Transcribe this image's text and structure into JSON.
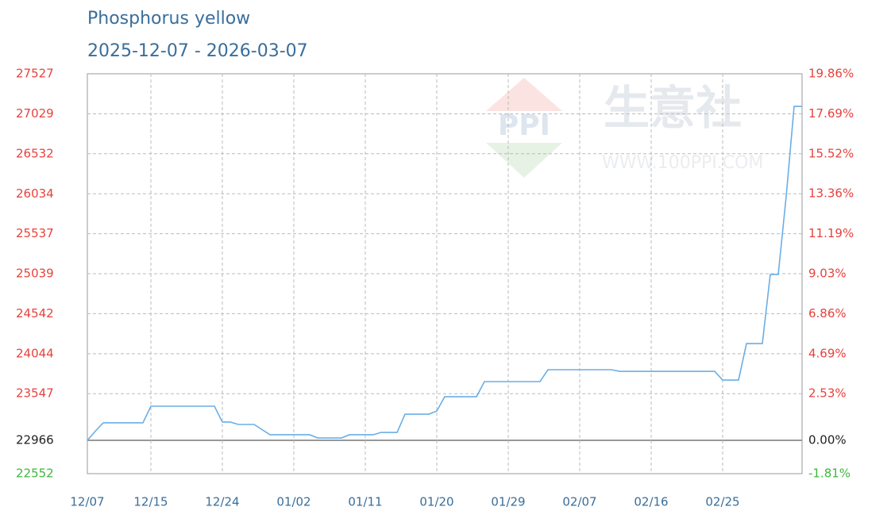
{
  "chart_data": {
    "type": "line",
    "title": "Phosphorus yellow",
    "subtitle": "2025-12-07 - 2026-03-07",
    "watermark": {
      "brand": "生意社",
      "site": "WWW.100PPI.COM"
    },
    "categories": [
      "12/07",
      null,
      null,
      null,
      null,
      null,
      null,
      null,
      "12/15",
      null,
      null,
      null,
      null,
      null,
      null,
      null,
      null,
      "12/24",
      null,
      null,
      null,
      null,
      null,
      null,
      null,
      null,
      "01/02",
      null,
      null,
      null,
      null,
      null,
      null,
      null,
      null,
      "01/11",
      null,
      null,
      null,
      null,
      null,
      null,
      null,
      null,
      "01/20",
      null,
      null,
      null,
      null,
      null,
      null,
      null,
      null,
      "01/29",
      null,
      null,
      null,
      null,
      null,
      null,
      null,
      null,
      "02/07",
      null,
      null,
      null,
      null,
      null,
      null,
      null,
      null,
      "02/16",
      null,
      null,
      null,
      null,
      null,
      null,
      null,
      null,
      "02/25",
      null,
      null,
      null,
      null,
      null,
      null,
      null,
      null,
      null,
      null
    ],
    "series": [
      {
        "name": "Phosphorus yellow",
        "color": "#6aaee6",
        "values": [
          22966,
          23080,
          23184,
          23184,
          23184,
          23184,
          23184,
          23184,
          23391,
          23391,
          23391,
          23391,
          23391,
          23391,
          23391,
          23391,
          23391,
          23194,
          23194,
          23164,
          23164,
          23164,
          23100,
          23036,
          23036,
          23036,
          23036,
          23036,
          23036,
          22996,
          22996,
          22996,
          22996,
          23036,
          23036,
          23036,
          23036,
          23065,
          23065,
          23065,
          23292,
          23292,
          23292,
          23292,
          23331,
          23509,
          23509,
          23509,
          23509,
          23509,
          23697,
          23697,
          23697,
          23697,
          23697,
          23697,
          23697,
          23697,
          23845,
          23845,
          23845,
          23845,
          23845,
          23845,
          23845,
          23845,
          23845,
          23825,
          23825,
          23825,
          23825,
          23825,
          23825,
          23825,
          23825,
          23825,
          23825,
          23825,
          23825,
          23825,
          23716,
          23716,
          23716,
          24170,
          24170,
          24170,
          25030,
          25030,
          26000,
          27122,
          27122
        ]
      }
    ],
    "ylim": [
      22552,
      27527
    ],
    "yticks": [
      27527,
      27029,
      26532,
      26034,
      25537,
      25039,
      24542,
      24044,
      23547,
      22966,
      22552
    ],
    "y2lim": [
      -1.81,
      19.86
    ],
    "y2ticks": [
      {
        "value": 19.86,
        "label": "19.86%"
      },
      {
        "value": 17.69,
        "label": "17.69%"
      },
      {
        "value": 15.52,
        "label": "15.52%"
      },
      {
        "value": 13.36,
        "label": "13.36%"
      },
      {
        "value": 11.19,
        "label": "11.19%"
      },
      {
        "value": 9.03,
        "label": "9.03%"
      },
      {
        "value": 6.86,
        "label": "6.86%"
      },
      {
        "value": 4.69,
        "label": "4.69%"
      },
      {
        "value": 2.53,
        "label": "2.53%"
      },
      {
        "value": 0,
        "label": "0.00%"
      },
      {
        "value": -1.81,
        "label": "-1.81%"
      }
    ],
    "grid": true
  }
}
